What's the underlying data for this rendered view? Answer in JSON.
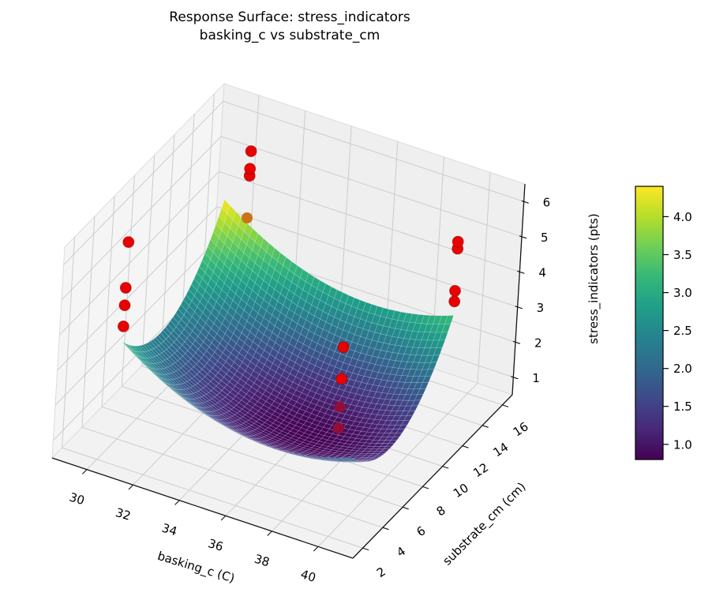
{
  "title": {
    "line1": "Response Surface: stress_indicators",
    "line2": "basking_c vs substrate_cm"
  },
  "chart_data": {
    "type": "surface3d",
    "xlabel": "basking_c (C)",
    "ylabel": "substrate_cm (cm)",
    "zlabel": "stress_indicators (pts)",
    "x_ticks": [
      30,
      32,
      34,
      36,
      38,
      40
    ],
    "y_ticks": [
      2,
      4,
      6,
      8,
      10,
      12,
      14,
      16
    ],
    "z_ticks": [
      1,
      2,
      3,
      4,
      5,
      6
    ],
    "x_range": [
      28.5,
      41.5
    ],
    "y_range": [
      1,
      17
    ],
    "z_range": [
      0.5,
      6.5
    ],
    "grid": true,
    "surface": {
      "model": "z = z0 + ax*(x-xc)^2 + ay*(y-yc)^2",
      "z0": 0.8,
      "xc": 36.5,
      "yc": 8.0,
      "ax": 0.0367,
      "ay": 0.057,
      "x_domain": [
        30,
        40
      ],
      "y_domain": [
        4,
        14
      ],
      "grid_segments": 40,
      "z_min": 0.8,
      "z_max": 4.4
    },
    "scatter": {
      "color": "#e80200",
      "marker": "circle",
      "points": [
        {
          "x": 31,
          "y": 14,
          "z": 6.0
        },
        {
          "x": 31,
          "y": 14,
          "z": 5.5
        },
        {
          "x": 31,
          "y": 14,
          "z": 5.3
        },
        {
          "x": 31,
          "y": 14,
          "z": 4.1,
          "dim": true
        },
        {
          "x": 30,
          "y": 4,
          "z": 6.1
        },
        {
          "x": 30,
          "y": 4,
          "z": 4.8
        },
        {
          "x": 30,
          "y": 4,
          "z": 4.3
        },
        {
          "x": 30,
          "y": 4,
          "z": 3.7
        },
        {
          "x": 40,
          "y": 14,
          "z": 5.4
        },
        {
          "x": 40,
          "y": 14,
          "z": 5.2
        },
        {
          "x": 40,
          "y": 14,
          "z": 4.0
        },
        {
          "x": 40,
          "y": 14,
          "z": 3.7
        },
        {
          "x": 37,
          "y": 10,
          "z": 2.9
        },
        {
          "x": 37,
          "y": 10,
          "z": 2.0
        },
        {
          "x": 37,
          "y": 10,
          "z": 1.2,
          "dim": true
        },
        {
          "x": 37,
          "y": 10,
          "z": 0.6,
          "dim": true
        }
      ]
    },
    "colormap": {
      "name": "viridis",
      "stops": [
        "#440154",
        "#482878",
        "#3e4989",
        "#31688e",
        "#26828e",
        "#1f9e89",
        "#35b779",
        "#6ece58",
        "#b5de2b",
        "#fde725"
      ]
    },
    "colorbar": {
      "tick_labels": [
        "1.0",
        "1.5",
        "2.0",
        "2.5",
        "3.0",
        "3.5",
        "4.0"
      ],
      "tick_values": [
        1.0,
        1.5,
        2.0,
        2.5,
        3.0,
        3.5,
        4.0
      ]
    }
  }
}
